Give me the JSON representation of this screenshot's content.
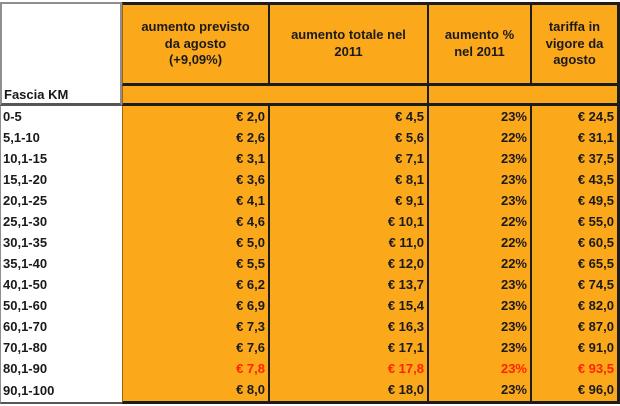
{
  "colors": {
    "header_orange": "#fca81b",
    "highlight_red": "#fe2400",
    "table_border_black": "#1c1c1c",
    "label_column_border_gray": "#8f8f8f"
  },
  "chart_data": {
    "type": "table",
    "row_header": "Fascia KM",
    "columns": [
      "aumento previsto\nda agosto\n(+9,09%)",
      "aumento totale nel\n2011",
      "aumento %\nnel 2011",
      "tariffa in\nvigore da\nagosto"
    ],
    "rows": [
      {
        "fascia": "0-5",
        "previsto": "€ 2,0",
        "totale": "€ 4,5",
        "percento": "23%",
        "tariffa": "€ 24,5",
        "highlight": false
      },
      {
        "fascia": "5,1-10",
        "previsto": "€ 2,6",
        "totale": "€ 5,6",
        "percento": "22%",
        "tariffa": "€ 31,1",
        "highlight": false
      },
      {
        "fascia": "10,1-15",
        "previsto": "€ 3,1",
        "totale": "€ 7,1",
        "percento": "23%",
        "tariffa": "€ 37,5",
        "highlight": false
      },
      {
        "fascia": "15,1-20",
        "previsto": "€ 3,6",
        "totale": "€ 8,1",
        "percento": "23%",
        "tariffa": "€ 43,5",
        "highlight": false
      },
      {
        "fascia": "20,1-25",
        "previsto": "€ 4,1",
        "totale": "€ 9,1",
        "percento": "23%",
        "tariffa": "€ 49,5",
        "highlight": false
      },
      {
        "fascia": "25,1-30",
        "previsto": "€ 4,6",
        "totale": "€ 10,1",
        "percento": "22%",
        "tariffa": "€ 55,0",
        "highlight": false
      },
      {
        "fascia": "30,1-35",
        "previsto": "€ 5,0",
        "totale": "€ 11,0",
        "percento": "22%",
        "tariffa": "€ 60,5",
        "highlight": false
      },
      {
        "fascia": "35,1-40",
        "previsto": "€ 5,5",
        "totale": "€ 12,0",
        "percento": "22%",
        "tariffa": "€ 65,5",
        "highlight": false
      },
      {
        "fascia": "40,1-50",
        "previsto": "€ 6,2",
        "totale": "€ 13,7",
        "percento": "23%",
        "tariffa": "€ 74,5",
        "highlight": false
      },
      {
        "fascia": "50,1-60",
        "previsto": "€ 6,9",
        "totale": "€ 15,4",
        "percento": "23%",
        "tariffa": "€ 82,0",
        "highlight": false
      },
      {
        "fascia": "60,1-70",
        "previsto": "€ 7,3",
        "totale": "€ 16,3",
        "percento": "23%",
        "tariffa": "€ 87,0",
        "highlight": false
      },
      {
        "fascia": "70,1-80",
        "previsto": "€ 7,6",
        "totale": "€ 17,1",
        "percento": "23%",
        "tariffa": "€ 91,0",
        "highlight": false
      },
      {
        "fascia": "80,1-90",
        "previsto": "€ 7,8",
        "totale": "€ 17,8",
        "percento": "23%",
        "tariffa": "€ 93,5",
        "highlight": true
      },
      {
        "fascia": "90,1-100",
        "previsto": "€ 8,0",
        "totale": "€ 18,0",
        "percento": "23%",
        "tariffa": "€ 96,0",
        "highlight": false
      }
    ]
  }
}
